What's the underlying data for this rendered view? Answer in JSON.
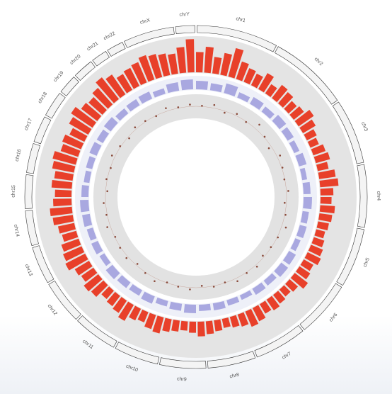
{
  "chart_data": {
    "type": "circos",
    "chromosomes": [
      {
        "name": "chr1",
        "length": 249
      },
      {
        "name": "chr2",
        "length": 243
      },
      {
        "name": "chr3",
        "length": 198
      },
      {
        "name": "chr4",
        "length": 191
      },
      {
        "name": "chr5",
        "length": 181
      },
      {
        "name": "chr6",
        "length": 171
      },
      {
        "name": "chr7",
        "length": 159
      },
      {
        "name": "chr8",
        "length": 146
      },
      {
        "name": "chr9",
        "length": 141
      },
      {
        "name": "chr10",
        "length": 136
      },
      {
        "name": "chr11",
        "length": 135
      },
      {
        "name": "chr12",
        "length": 134
      },
      {
        "name": "chr13",
        "length": 115
      },
      {
        "name": "chr14",
        "length": 107
      },
      {
        "name": "chr15",
        "length": 103
      },
      {
        "name": "chr16",
        "length": 90
      },
      {
        "name": "chr17",
        "length": 81
      },
      {
        "name": "chr18",
        "length": 78
      },
      {
        "name": "chr19",
        "length": 59
      },
      {
        "name": "chr20",
        "length": 63
      },
      {
        "name": "chr21",
        "length": 48
      },
      {
        "name": "chr22",
        "length": 51
      },
      {
        "name": "chrX",
        "length": 155
      },
      {
        "name": "chrY",
        "length": 59
      }
    ],
    "series": [
      {
        "mark": "bar",
        "color": "#e8402a",
        "values": [
          0.55,
          0.7,
          0.45,
          0.6,
          0.8,
          0.5,
          0.4,
          0.35,
          0.5,
          0.3,
          0.45,
          0.4,
          0.3,
          0.35,
          0.5,
          0.4,
          0.3,
          0.25,
          0.35,
          0.4,
          0.3,
          0.45,
          0.5,
          0.35,
          0.3,
          0.4,
          0.35,
          0.3,
          0.25,
          0.3,
          0.35,
          0.4,
          0.3,
          0.35,
          0.45,
          0.3,
          0.25,
          0.3,
          0.35,
          0.3,
          0.4,
          0.45,
          0.35,
          0.3,
          0.25,
          0.3,
          0.35,
          0.4,
          0.3,
          0.25,
          0.3,
          0.35,
          0.45,
          0.4,
          0.3,
          0.35,
          0.5,
          0.4,
          0.35,
          0.3,
          0.45,
          0.5,
          0.4,
          0.45,
          0.6,
          0.55,
          0.5,
          0.4,
          0.45,
          0.55,
          0.6,
          0.5,
          0.45,
          0.55,
          0.5,
          0.6,
          0.65,
          0.5,
          0.55,
          0.45,
          0.6,
          0.7,
          0.55,
          0.5,
          0.6,
          0.75,
          0.65,
          0.5,
          0.55,
          0.6,
          0.7,
          0.65,
          0.6,
          0.55,
          0.7,
          0.9
        ]
      },
      {
        "mark": "bar",
        "color": "#a9a8e0",
        "values": [
          0.6,
          0.5,
          0.7,
          0.4,
          0.55,
          0.45,
          0.6,
          0.5,
          0.4,
          0.55,
          0.35,
          0.5,
          0.6,
          0.45,
          0.5,
          0.4,
          0.55,
          0.6,
          0.45,
          0.5,
          0.35,
          0.4,
          0.5,
          0.45,
          0.6,
          0.5,
          0.4,
          0.55,
          0.45,
          0.5,
          0.6,
          0.4,
          0.5,
          0.45,
          0.55,
          0.6,
          0.5,
          0.4,
          0.45,
          0.55,
          0.5,
          0.6,
          0.45,
          0.5,
          0.55,
          0.4,
          0.6,
          0.7
        ]
      },
      {
        "mark": "point",
        "color": "#8a4a3a",
        "values": [
          0.5,
          0.6,
          0.4,
          0.55,
          0.45,
          0.7,
          0.5,
          0.35,
          0.6,
          0.5,
          0.45,
          0.55,
          0.4,
          0.5,
          0.65,
          0.5,
          0.45,
          0.4,
          0.55,
          0.5,
          0.6,
          0.45,
          0.5,
          0.4,
          0.55,
          0.5,
          0.45,
          0.6,
          0.5,
          0.4,
          0.55,
          0.5,
          0.45,
          0.6,
          0.5,
          0.55,
          0.4,
          0.5,
          0.45,
          0.6,
          0.5,
          0.4,
          0.55,
          0.5,
          0.45,
          0.6,
          0.5,
          0.55
        ]
      }
    ]
  }
}
